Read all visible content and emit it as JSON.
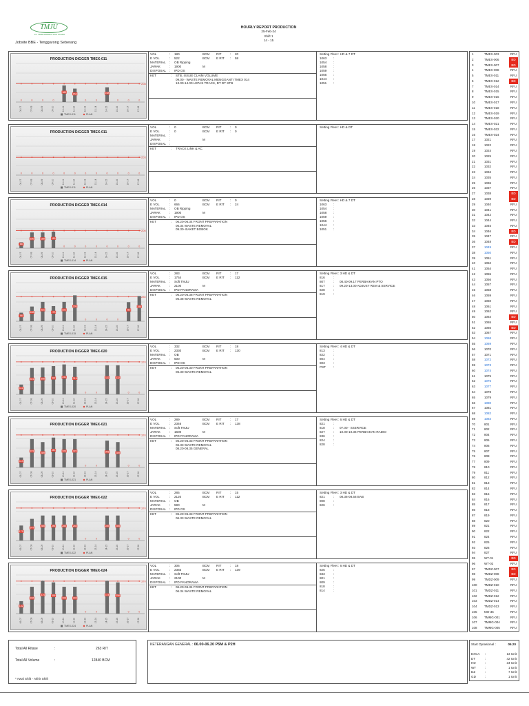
{
  "header": {
    "logo_text": "TMJU",
    "logo_sub": "PT. TRIMUSWARA JAYA UTAMA",
    "jobsite": "Jobsite BBE - Tenggarong Seberang",
    "title": "HOURLY REPORT PRODUCTION",
    "date": "25-Feb-24",
    "shift": "Shift 1",
    "hours": "14 - 15"
  },
  "colors": {
    "bar": "#6b6b6b",
    "plan": "#e0463a",
    "bd": "#e52b1e",
    "blue_unit": "#1e6cd6"
  },
  "labels": {
    "vol": "VOL",
    "evol": "E VOL",
    "material": "MATERIAL",
    "jarak": "JARAK",
    "disposal": "DISPOSAL",
    "ket": "KET",
    "bcm": "BCM",
    "rit": "RIT",
    "erit": "E RIT",
    "m": "M",
    "colon": ":"
  },
  "diggers": [
    {
      "title": "PRODUCTION DIGGER TMEX-011",
      "legend": [
        "TMEX-011",
        "PLAN"
      ],
      "chart_data": {
        "type": "bar",
        "categories": [
          "06-07",
          "07-08",
          "08-09",
          "09-10",
          "10-11",
          "11-12",
          "12-13",
          "13-14",
          "14-15",
          "15-16",
          "16-17",
          "17-18"
        ],
        "values": [
          0,
          0,
          0,
          0,
          189,
          153,
          0,
          0,
          168,
          0,
          0,
          0
        ],
        "plan": 208
      },
      "vol": "180",
      "rit": "20",
      "evol": "522",
      "erit": "58",
      "material": "OB Ripping",
      "jarak": "1900",
      "disposal": "IPD OS",
      "ket": [
        "STB, ISSUE CLAIM VOLUME",
        "09.00 - WASTE REMOVAL MENGGANTI TMEX 014",
        "13.00-14.00 LEPAS TRACK, DT DT STB"
      ],
      "fleet_title": "Setting Fleet : HD & 7 DT",
      "fleet": [
        [
          "1063",
          ""
        ],
        [
          "1054",
          ""
        ],
        [
          "1058",
          ""
        ],
        [
          "1059",
          ""
        ],
        [
          "1056",
          ""
        ],
        [
          "1044",
          ""
        ],
        [
          "1051",
          ""
        ]
      ]
    },
    {
      "title": "PRODUCTION DIGGER TMEX-011",
      "legend": [
        "TMEX-011",
        "PLAN"
      ],
      "chart_data": {
        "type": "bar",
        "categories": [
          "06-07",
          "07-08",
          "08-09",
          "09-10",
          "10-11",
          "11-12",
          "12-13",
          "13-14",
          "14-15",
          "15-16",
          "16-17",
          "17-18"
        ],
        "values": [
          0,
          0,
          0,
          0,
          0,
          0,
          0,
          0,
          0,
          0,
          0,
          0
        ],
        "plan": 203
      },
      "vol": "0",
      "rit": "0",
      "evol": "0",
      "erit": "0",
      "material": "",
      "jarak": "",
      "disposal": "",
      "ket": [
        "TRACK LINK & AC"
      ],
      "fleet_title": "Setting Fleet : HD & DT",
      "fleet": []
    },
    {
      "title": "PRODUCTION DIGGER TMEX-014",
      "legend": [
        "TMEX-014",
        "PLAN"
      ],
      "chart_data": {
        "type": "bar",
        "categories": [
          "06-07",
          "07-08",
          "08-09",
          "09-10",
          "10-11",
          "11-12",
          "12-13",
          "13-14",
          "14-15",
          "15-16",
          "16-17",
          "17-18"
        ],
        "values": [
          68,
          180,
          180,
          189,
          0,
          0,
          0,
          0,
          0,
          0,
          0,
          0
        ],
        "plan": 200
      },
      "vol": "0",
      "rit": "0",
      "evol": "666",
      "erit": "24",
      "material": "OB Ripping",
      "jarak": "1900",
      "disposal": "IPD OS",
      "ket": [
        "06.20-06.34 FRONT PREPARATION",
        "06.34 WASTE REMOVAL",
        "09.30- BAKET BOBOK"
      ],
      "fleet_title": "Setting Fleet : HD & 7 DT",
      "fleet": [
        [
          "1063",
          ""
        ],
        [
          "1054",
          ""
        ],
        [
          "1058",
          ""
        ],
        [
          "1059",
          ""
        ],
        [
          "1056",
          ""
        ],
        [
          "1044",
          ""
        ],
        [
          "1051",
          ""
        ]
      ]
    },
    {
      "title": "PRODUCTION DIGGER TMEX-015",
      "legend": [
        "TMEX-015",
        "PLAN"
      ],
      "chart_data": {
        "type": "bar",
        "categories": [
          "06-07",
          "07-08",
          "08-09",
          "09-10",
          "10-11",
          "11-12",
          "12-13",
          "13-14",
          "14-15",
          "15-16",
          "16-17",
          "17-18"
        ],
        "values": [
          98,
          168,
          221,
          173,
          221,
          296,
          0,
          0,
          0,
          0,
          218,
          288
        ],
        "plan": 280
      },
      "vol": "283",
      "rit": "17",
      "evol": "1754",
      "erit": "112",
      "material": "Soft TMJU",
      "jarak": "2100",
      "disposal": "IPD PANORAMA",
      "ket": [
        "06.20-06.38 FRONT PREPARATION",
        "06.38 WASTE REMOVAL"
      ],
      "fleet_title": "Setting Fleet : 3 HD & DT",
      "fleet": [
        [
          "816",
          ""
        ],
        [
          "807",
          "08.40-09.17 PERBAIKAN PTO"
        ],
        [
          "817",
          "09.20-13.00 ADJUST REM & SERVICE"
        ],
        [
          "828",
          ""
        ],
        [
          "819",
          ""
        ]
      ]
    },
    {
      "title": "PRODUCTION DIGGER TMEX-020",
      "legend": [
        "TMEX-020",
        "PLAN"
      ],
      "chart_data": {
        "type": "bar",
        "categories": [
          "06-07",
          "07-08",
          "08-09",
          "09-10",
          "10-11",
          "11-12",
          "12-13",
          "13-14",
          "14-15",
          "15-16",
          "16-17",
          "17-18"
        ],
        "values": [
          112,
          301,
          306,
          322,
          341,
          315,
          0,
          0,
          332,
          332,
          0,
          0
        ],
        "plan": 370
      },
      "vol": "332",
      "rit": "18",
      "evol": "2330",
      "erit": "130",
      "material": "OB",
      "jarak": "500",
      "disposal": "IPD OS",
      "ket": [
        "06.20-06.30 FRONT PREPARATION",
        "06.30 WASTE REMOVAL"
      ],
      "fleet_title": "Setting Fleet : 4 HD & DT",
      "fleet": [
        [
          "813",
          ""
        ],
        [
          "822",
          ""
        ],
        [
          "804",
          ""
        ],
        [
          "803",
          ""
        ],
        [
          "PST",
          ""
        ]
      ]
    },
    {
      "title": "PRODUCTION DIGGER TMEX-021",
      "legend": [
        "TMEX-021",
        "PLAN"
      ],
      "chart_data": {
        "type": "bar",
        "categories": [
          "06-07",
          "07-08",
          "08-09",
          "09-10",
          "10-11",
          "11-12",
          "12-13",
          "13-14",
          "14-15",
          "15-16",
          "16-17",
          "17-18"
        ],
        "values": [
          113,
          323,
          289,
          340,
          323,
          323,
          0,
          0,
          306,
          289,
          0,
          0
        ],
        "plan": 370
      },
      "vol": "289",
      "rit": "17",
      "evol": "2346",
      "erit": "138",
      "material": "Soft TMJU",
      "jarak": "1600",
      "disposal": "IPD PANORAMA",
      "ket": [
        "06.20-06.33 FRONT PREPARATION",
        "06.33 WASTE REMOVAL",
        "08.20-08.35 GENERAL"
      ],
      "fleet_title": "Setting Fleet : 6 HD & DT",
      "fleet": [
        [
          "821",
          ""
        ],
        [
          "818",
          "07.00 - SSERVICE"
        ],
        [
          "827",
          "10.00-10.36 PERBAIKAN RADIO"
        ],
        [
          "836",
          ""
        ],
        [
          "824",
          ""
        ],
        [
          "828",
          ""
        ]
      ]
    },
    {
      "title": "PRODUCTION DIGGER TMEX-022",
      "legend": [
        "TMEX-022",
        "PLAN"
      ],
      "chart_data": {
        "type": "bar",
        "categories": [
          "06-07",
          "07-08",
          "08-09",
          "09-10",
          "10-11",
          "11-12",
          "12-13",
          "13-14",
          "14-15",
          "15-16",
          "16-17",
          "17-18"
        ],
        "values": [
          171,
          247,
          285,
          285,
          285,
          285,
          0,
          0,
          285,
          285,
          0,
          0
        ],
        "plan": 370
      },
      "vol": "285",
      "rit": "15",
      "evol": "2120",
      "erit": "112",
      "material": "OB",
      "jarak": "590",
      "disposal": "IPD OS",
      "ket": [
        "06.20-06.33 FRONT PREPARATION",
        "06.33 WASTE REMOVAL"
      ],
      "fleet_title": "Setting Fleet : 3 HD & DT",
      "fleet": [
        [
          "821",
          "08.36-08.56 BAB"
        ],
        [
          "808",
          ""
        ],
        [
          "826",
          ""
        ]
      ]
    },
    {
      "title": "PRODUCTION DIGGER TMEX-024",
      "legend": [
        "TMEX-024",
        "PLAN"
      ],
      "chart_data": {
        "type": "bar",
        "categories": [
          "06-07",
          "07-08",
          "08-09",
          "09-10",
          "10-11",
          "11-12",
          "12-13",
          "13-14",
          "14-15",
          "15-16",
          "16-17",
          "17-18"
        ],
        "values": [
          142,
          306,
          374,
          356,
          306,
          306,
          0,
          0,
          374,
          356,
          0,
          0
        ],
        "plan": 370
      },
      "vol": "306",
      "rit": "18",
      "evol": "2383",
      "erit": "139",
      "material": "Soft TMJU",
      "jarak": "2100",
      "disposal": "IPD PANORAMA",
      "ket": [
        "06.20-06.34 FRONT PREPARATION",
        "06.34 WASTE REMOVAL"
      ],
      "fleet_title": "Setting Fleet : 6 HD & DT",
      "fleet": [
        [
          "825",
          ""
        ],
        [
          "833",
          ""
        ],
        [
          "801",
          ""
        ],
        [
          "809",
          ""
        ],
        [
          "818",
          ""
        ],
        [
          "814",
          ""
        ]
      ]
    }
  ],
  "units": [
    [
      "1",
      "TMEX-003",
      "RFU"
    ],
    [
      "2",
      "TMEX-006",
      "BD"
    ],
    [
      "3",
      "TMEX-007",
      "BD"
    ],
    [
      "4",
      "TMEX-008",
      "RFU"
    ],
    [
      "5",
      "TMEX-011",
      "RFU"
    ],
    [
      "6",
      "TMEX-012",
      "BD"
    ],
    [
      "7",
      "TMEX-014",
      "RFU"
    ],
    [
      "8",
      "TMEX-015",
      "RFU"
    ],
    [
      "9",
      "TMEX-016",
      "RFU"
    ],
    [
      "10",
      "TMEX-017",
      "RFU"
    ],
    [
      "11",
      "TMEX-018",
      "RFU"
    ],
    [
      "12",
      "TMEX-019",
      "RFU"
    ],
    [
      "13",
      "TMEX-020",
      "RFU"
    ],
    [
      "14",
      "TMEX-021",
      "RFU"
    ],
    [
      "15",
      "TMEX-022",
      "RFU"
    ],
    [
      "16",
      "TMEX-024",
      "RFU"
    ],
    [
      "17",
      "1021",
      "RFU"
    ],
    [
      "18",
      "1022",
      "RFU"
    ],
    [
      "19",
      "1024",
      "RFU"
    ],
    [
      "20",
      "1025",
      "RFU"
    ],
    [
      "21",
      "1031",
      "RFU"
    ],
    [
      "22",
      "1032",
      "RFU"
    ],
    [
      "23",
      "1034",
      "RFU"
    ],
    [
      "24",
      "1035",
      "RFU"
    ],
    [
      "25",
      "1036",
      "RFU"
    ],
    [
      "26",
      "1037",
      "RFU"
    ],
    [
      "27",
      "1038",
      "BD"
    ],
    [
      "28",
      "1039",
      "BD"
    ],
    [
      "29",
      "1040",
      "RFU"
    ],
    [
      "30",
      "1041",
      "RFU"
    ],
    [
      "31",
      "1042",
      "RFU"
    ],
    [
      "32",
      "1044",
      "RFU"
    ],
    [
      "33",
      "1045",
      "RFU"
    ],
    [
      "34",
      "1046",
      "BD"
    ],
    [
      "35",
      "1047",
      "RFU"
    ],
    [
      "36",
      "1048",
      "BD"
    ],
    [
      "37",
      "1049",
      "RFU"
    ],
    [
      "38",
      "1050",
      "RFU"
    ],
    [
      "39",
      "1051",
      "RFU"
    ],
    [
      "40",
      "1052",
      "RFU"
    ],
    [
      "41",
      "1054",
      "RFU"
    ],
    [
      "42",
      "1055",
      "RFU"
    ],
    [
      "43",
      "1056",
      "RFU"
    ],
    [
      "44",
      "1057",
      "RFU"
    ],
    [
      "45",
      "1058",
      "RFU"
    ],
    [
      "46",
      "1059",
      "RFU"
    ],
    [
      "47",
      "1060",
      "RFU"
    ],
    [
      "48",
      "1061",
      "RFU"
    ],
    [
      "49",
      "1062",
      "RFU"
    ],
    [
      "50",
      "1064",
      "BD"
    ],
    [
      "51",
      "1065",
      "RFU"
    ],
    [
      "52",
      "1066",
      "BD"
    ],
    [
      "53",
      "1067",
      "RFU"
    ],
    [
      "54",
      "1068",
      "RFU"
    ],
    [
      "55",
      "1069",
      "RFU"
    ],
    [
      "56",
      "1070",
      "RFU"
    ],
    [
      "57",
      "1071",
      "RFU"
    ],
    [
      "58",
      "1072",
      "RFU"
    ],
    [
      "59",
      "1073",
      "RFU"
    ],
    [
      "60",
      "1074",
      "RFU"
    ],
    [
      "61",
      "1075",
      "RFU"
    ],
    [
      "62",
      "1076",
      "RFU"
    ],
    [
      "63",
      "1077",
      "RFU"
    ],
    [
      "64",
      "1078",
      "RFU"
    ],
    [
      "65",
      "1079",
      "RFU"
    ],
    [
      "66",
      "1080",
      "RFU"
    ],
    [
      "67",
      "1081",
      "RFU"
    ],
    [
      "68",
      "1082",
      "RFU"
    ],
    [
      "69",
      "1084",
      "RFU"
    ],
    [
      "70",
      "801",
      "RFU"
    ],
    [
      "71",
      "802",
      "RFU"
    ],
    [
      "72",
      "804",
      "RFU"
    ],
    [
      "73",
      "805",
      "RFU"
    ],
    [
      "74",
      "806",
      "RFU"
    ],
    [
      "75",
      "807",
      "RFU"
    ],
    [
      "76",
      "808",
      "RFU"
    ],
    [
      "77",
      "809",
      "RFU"
    ],
    [
      "78",
      "810",
      "RFU"
    ],
    [
      "79",
      "811",
      "RFU"
    ],
    [
      "80",
      "812",
      "RFU"
    ],
    [
      "81",
      "813",
      "RFU"
    ],
    [
      "82",
      "814",
      "RFU"
    ],
    [
      "83",
      "815",
      "RFU"
    ],
    [
      "84",
      "816",
      "RFU"
    ],
    [
      "85",
      "817",
      "RFU"
    ],
    [
      "86",
      "818",
      "RFU"
    ],
    [
      "87",
      "819",
      "RFU"
    ],
    [
      "88",
      "820",
      "RFU"
    ],
    [
      "89",
      "821",
      "RFU"
    ],
    [
      "90",
      "822",
      "RFU"
    ],
    [
      "91",
      "824",
      "RFU"
    ],
    [
      "92",
      "825",
      "RFU"
    ],
    [
      "93",
      "826",
      "RFU"
    ],
    [
      "94",
      "827",
      "RFU"
    ],
    [
      "95",
      "WT-01",
      "BD"
    ],
    [
      "96",
      "WT-02",
      "RFU"
    ],
    [
      "97",
      "TMDZ-007",
      "BD"
    ],
    [
      "98",
      "TMDZ-008",
      "BD"
    ],
    [
      "99",
      "TMDZ-009",
      "RFU"
    ],
    [
      "100",
      "TMDZ-010",
      "RFU"
    ],
    [
      "101",
      "TMDZ-011",
      "RFU"
    ],
    [
      "102",
      "TMDZ-012",
      "RFU"
    ],
    [
      "103",
      "TMDZ-014",
      "RFU"
    ],
    [
      "104",
      "TMDZ-013",
      "RFU"
    ],
    [
      "105",
      "MO-35",
      "RFU"
    ],
    [
      "106",
      "TMMG-001",
      "RFU"
    ],
    [
      "107",
      "TMMG-004",
      "RFU"
    ],
    [
      "108",
      "TMMG-005",
      "RFU"
    ]
  ],
  "blue_units": [
    "1049",
    "1050",
    "1068",
    "1069",
    "1072",
    "1073",
    "1074",
    "1076",
    "1077",
    "1080",
    "1082",
    "1084"
  ],
  "summary": {
    "ritase_label": "Total All Ritase",
    "ritase_value": "263 RIT",
    "volume_label": "Total All Volume",
    "volume_value": "12840 BCM",
    "note": "* Awal Shift - Akhir Shift"
  },
  "general": {
    "label": "KETERANGAN GENERAL :",
    "text": "06.00-06.20 P5M & P2H"
  },
  "ops": {
    "start_label": "Start Oprasional :",
    "start_value": "06.20",
    "rows": [
      [
        "EXCA",
        "13 Unit"
      ],
      [
        "DT",
        "42 Unit"
      ],
      [
        "HD",
        "34 Unit"
      ],
      [
        "WT",
        "1 Unit"
      ],
      [
        "DZ",
        "7 Unit"
      ],
      [
        "GD",
        "1 Unit"
      ]
    ]
  }
}
